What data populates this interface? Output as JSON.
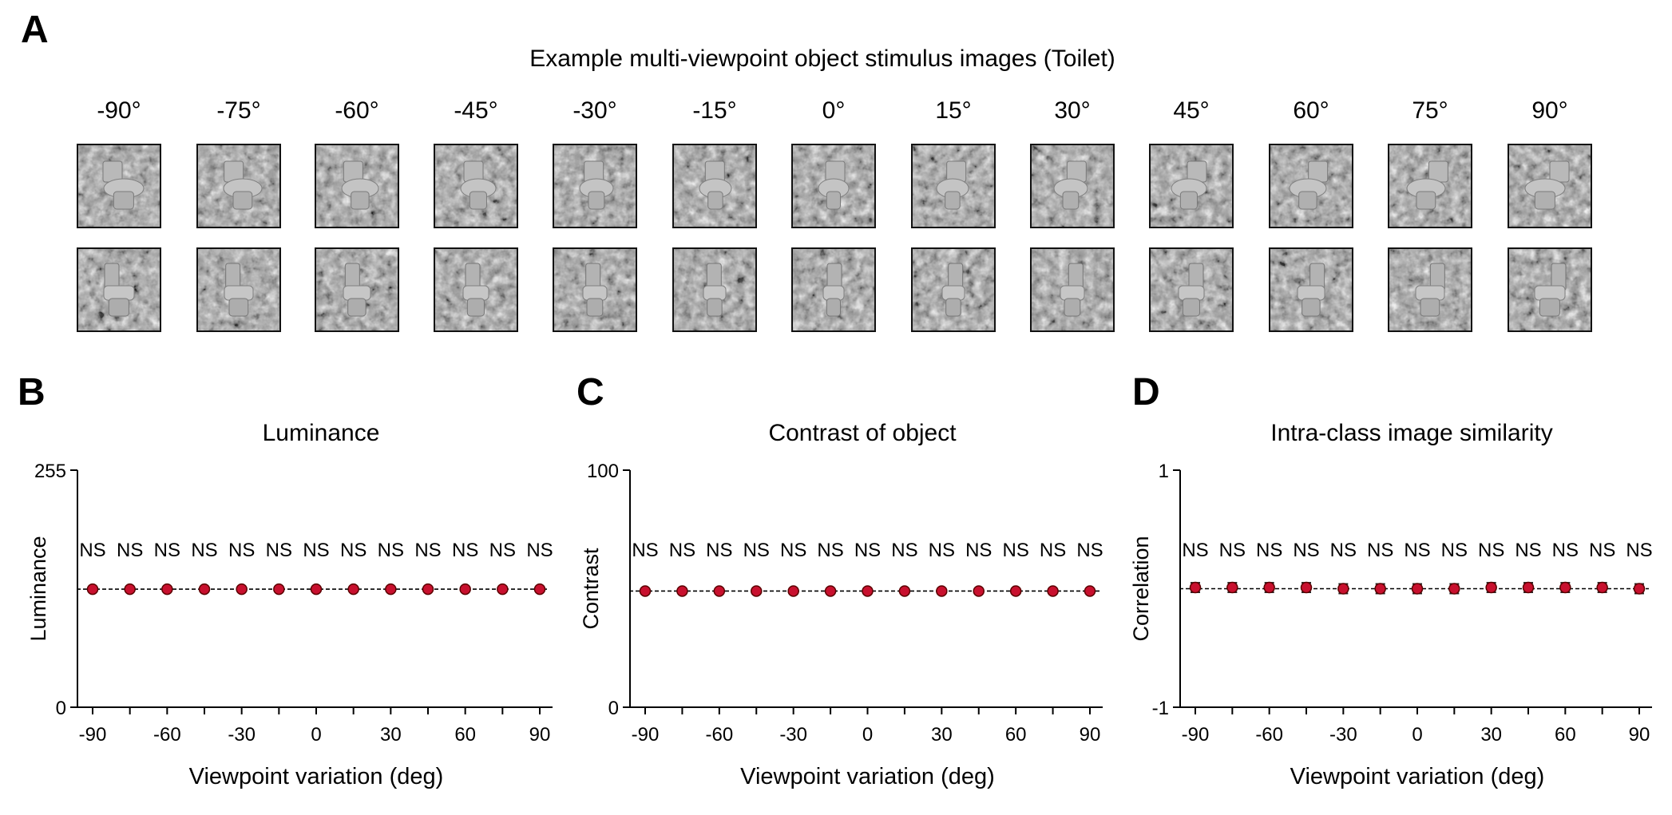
{
  "panels": {
    "a": {
      "letter": "A",
      "title": "Example multi-viewpoint object stimulus images (Toilet)"
    },
    "b": {
      "letter": "B"
    },
    "c": {
      "letter": "C"
    },
    "d": {
      "letter": "D"
    }
  },
  "stimulus": {
    "object": "Toilet",
    "angles": [
      "-90°",
      "-75°",
      "-60°",
      "-45°",
      "-30°",
      "-15°",
      "0°",
      "15°",
      "30°",
      "45°",
      "60°",
      "75°",
      "90°"
    ],
    "rows": 2
  },
  "colors": {
    "marker": "#c8102e",
    "marker_edge": "#5a0000",
    "axis": "#000000"
  },
  "chart_data": [
    {
      "type": "scatter",
      "title": "Luminance",
      "xlabel": "Viewpoint variation (deg)",
      "ylabel": "Luminance",
      "x": [
        -90,
        -75,
        -60,
        -45,
        -30,
        -15,
        0,
        15,
        30,
        45,
        60,
        75,
        90
      ],
      "y": [
        127,
        127,
        127,
        127,
        127,
        127,
        127,
        127,
        127,
        127,
        127,
        127,
        127
      ],
      "yerr": [
        0,
        0,
        0,
        0,
        0,
        0,
        0,
        0,
        0,
        0,
        0,
        0,
        0
      ],
      "ylim": [
        0,
        255
      ],
      "yticks": [
        "0",
        "255"
      ],
      "xticks": [
        "-90",
        "-60",
        "-30",
        "0",
        "30",
        "60",
        "90"
      ],
      "xtick_values": [
        -90,
        -60,
        -30,
        0,
        30,
        60,
        90
      ],
      "reference_line": 127,
      "annotations": [
        "NS",
        "NS",
        "NS",
        "NS",
        "NS",
        "NS",
        "NS",
        "NS",
        "NS",
        "NS",
        "NS",
        "NS",
        "NS"
      ]
    },
    {
      "type": "scatter",
      "title": "Contrast of object",
      "xlabel": "Viewpoint variation (deg)",
      "ylabel": "Contrast",
      "x": [
        -90,
        -75,
        -60,
        -45,
        -30,
        -15,
        0,
        15,
        30,
        45,
        60,
        75,
        90
      ],
      "y": [
        49,
        49,
        49,
        49,
        49,
        49,
        49,
        49,
        49,
        49,
        49,
        49,
        49
      ],
      "yerr": [
        0,
        0,
        0,
        0,
        0,
        0,
        0,
        0,
        0,
        0,
        0,
        0,
        0
      ],
      "ylim": [
        0,
        100
      ],
      "yticks": [
        "0",
        "100"
      ],
      "xticks": [
        "-90",
        "-60",
        "-30",
        "0",
        "30",
        "60",
        "90"
      ],
      "xtick_values": [
        -90,
        -60,
        -30,
        0,
        30,
        60,
        90
      ],
      "reference_line": 49,
      "annotations": [
        "NS",
        "NS",
        "NS",
        "NS",
        "NS",
        "NS",
        "NS",
        "NS",
        "NS",
        "NS",
        "NS",
        "NS",
        "NS"
      ]
    },
    {
      "type": "scatter",
      "title": "Intra-class image similarity",
      "xlabel": "Viewpoint variation (deg)",
      "ylabel": "Correlation",
      "x": [
        -90,
        -75,
        -60,
        -45,
        -30,
        -15,
        0,
        15,
        30,
        45,
        60,
        75,
        90
      ],
      "y": [
        0.01,
        0.01,
        0.01,
        0.01,
        0.0,
        0.0,
        0.0,
        0.0,
        0.01,
        0.01,
        0.01,
        0.01,
        0.0
      ],
      "yerr": [
        0.04,
        0.04,
        0.04,
        0.04,
        0.04,
        0.04,
        0.04,
        0.04,
        0.04,
        0.04,
        0.04,
        0.04,
        0.04
      ],
      "ylim": [
        -1,
        1
      ],
      "yticks": [
        "-1",
        "1"
      ],
      "xticks": [
        "-90",
        "-60",
        "-30",
        "0",
        "30",
        "60",
        "90"
      ],
      "xtick_values": [
        -90,
        -60,
        -30,
        0,
        30,
        60,
        90
      ],
      "reference_line": 0,
      "annotations": [
        "NS",
        "NS",
        "NS",
        "NS",
        "NS",
        "NS",
        "NS",
        "NS",
        "NS",
        "NS",
        "NS",
        "NS",
        "NS"
      ]
    }
  ]
}
